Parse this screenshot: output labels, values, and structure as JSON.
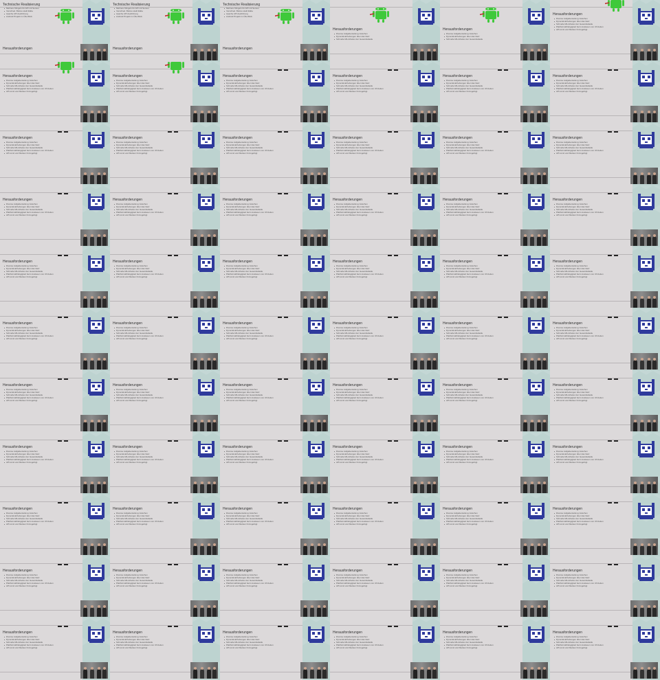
{
  "grid": {
    "rows": 11,
    "cols": 6
  },
  "colors": {
    "background": "#b9cfcc",
    "slide": "#dcd9da",
    "android_green": "#3fc93a",
    "cat_blue": "#2e3a9c"
  },
  "icons": {
    "mascot": "pixel-cat-icon",
    "android": "android-robot-icon",
    "webcam": "webcam-video-feed"
  },
  "titles": {
    "technical": "Technische Realisierung",
    "challenges": "Herausforderungen"
  },
  "technical_bullets": [
    "Mehrere Klingeln für API mit Sensor",
    "Verschied. Bolzen-Hall-Stäbe",
    "Apache API Ausführung",
    "Android Projekt im Überblick"
  ],
  "challenge_bullets": [
    "Diverse Aufgabenteilung zwischen",
    "Dynamik-Erhebungen über das Netz",
    "Schnelle Mit-Arbeiter der Gesamttabelle",
    "Plattformabhängigkeit beim Auslesen von Uhrzeiten",
    "API-Limit und Merken hinzugefügt"
  ]
}
